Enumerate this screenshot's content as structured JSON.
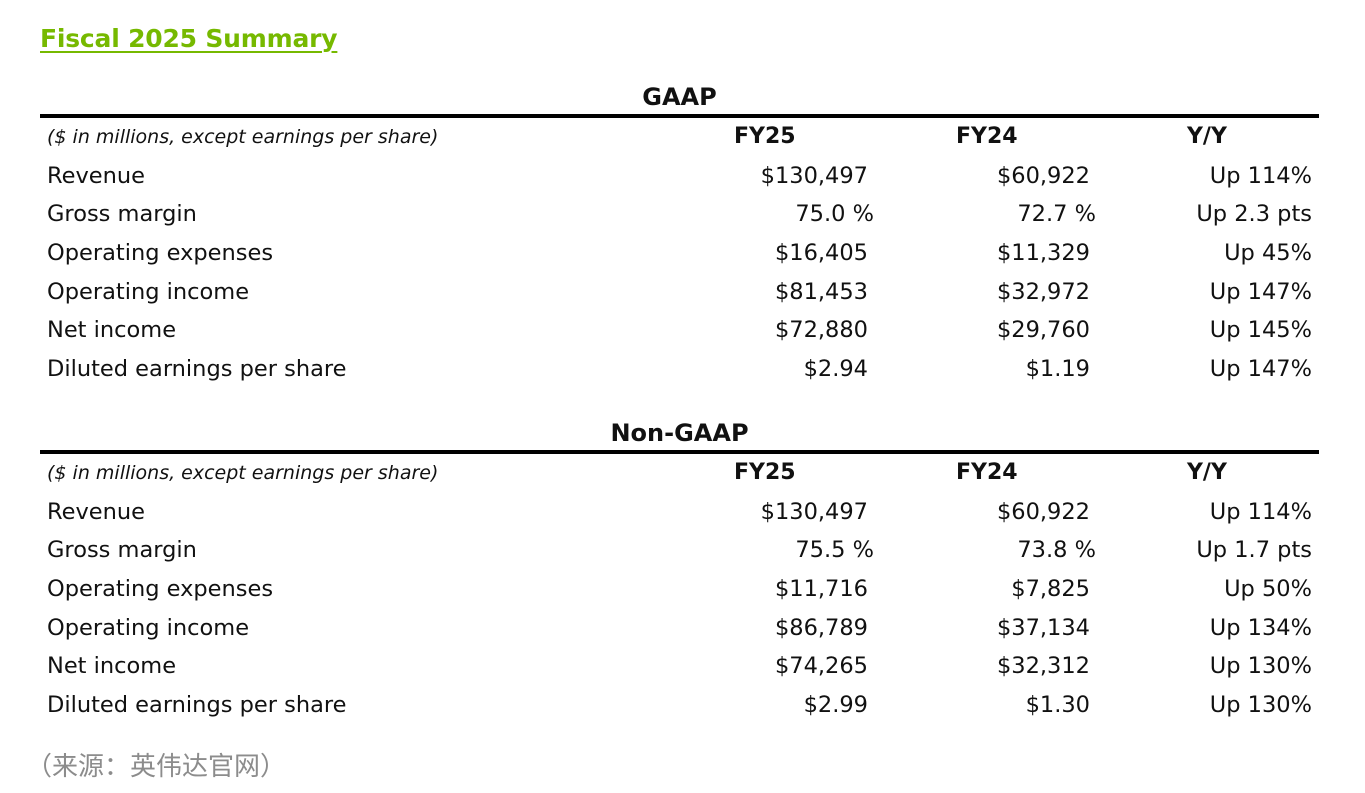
{
  "title": "Fiscal 2025 Summary",
  "sections": [
    {
      "heading": "GAAP",
      "columns": {
        "label": "($ in millions, except earnings per share)",
        "fy25": "FY25",
        "fy24": "FY24",
        "yy": "Y/Y"
      },
      "rows": [
        {
          "label": "Revenue",
          "fy25": "$130,497",
          "fy24": "$60,922",
          "yy": "Up 114%"
        },
        {
          "label": "Gross margin",
          "fy25": "75.0 %",
          "fy24": "72.7 %",
          "yy": "Up 2.3 pts"
        },
        {
          "label": "Operating expenses",
          "fy25": "$16,405",
          "fy24": "$11,329",
          "yy": "Up 45%"
        },
        {
          "label": "Operating income",
          "fy25": "$81,453",
          "fy24": "$32,972",
          "yy": "Up 147%"
        },
        {
          "label": "Net income",
          "fy25": "$72,880",
          "fy24": "$29,760",
          "yy": "Up 145%"
        },
        {
          "label": "Diluted earnings per share",
          "fy25": "$2.94",
          "fy24": "$1.19",
          "yy": "Up 147%"
        }
      ]
    },
    {
      "heading": "Non-GAAP",
      "columns": {
        "label": "($ in millions, except earnings per share)",
        "fy25": "FY25",
        "fy24": "FY24",
        "yy": "Y/Y"
      },
      "rows": [
        {
          "label": "Revenue",
          "fy25": "$130,497",
          "fy24": "$60,922",
          "yy": "Up 114%"
        },
        {
          "label": "Gross margin",
          "fy25": "75.5 %",
          "fy24": "73.8 %",
          "yy": "Up 1.7 pts"
        },
        {
          "label": "Operating expenses",
          "fy25": "$11,716",
          "fy24": "$7,825",
          "yy": "Up 50%"
        },
        {
          "label": "Operating income",
          "fy25": "$86,789",
          "fy24": "$37,134",
          "yy": "Up 134%"
        },
        {
          "label": "Net income",
          "fy25": "$74,265",
          "fy24": "$32,312",
          "yy": "Up 130%"
        },
        {
          "label": "Diluted earnings per share",
          "fy25": "$2.99",
          "fy24": "$1.30",
          "yy": "Up 130%"
        }
      ]
    }
  ],
  "source_note": "（来源：英伟达官网）",
  "colors": {
    "title": "#76b900",
    "rule": "#000000",
    "note": "#8c8c8c"
  }
}
